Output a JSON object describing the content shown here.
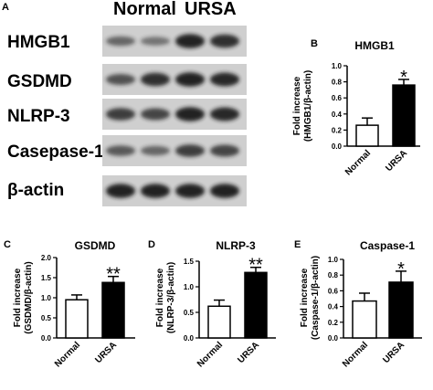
{
  "panel_a": {
    "letter": "A",
    "groups": [
      "Normal",
      "URSA"
    ],
    "blot_labels": [
      "HMGB1",
      "GSDMD",
      "NLRP-3",
      "Casepase-1",
      "β-actin"
    ],
    "band_intensity": [
      [
        0.45,
        0.35,
        0.95,
        0.85
      ],
      [
        0.6,
        0.85,
        0.95,
        0.9
      ],
      [
        0.75,
        0.7,
        0.95,
        0.9
      ],
      [
        0.55,
        0.45,
        0.75,
        0.7
      ],
      [
        0.95,
        0.95,
        0.95,
        0.95
      ]
    ],
    "blot_color": "#1a1a1a"
  },
  "chart_data": [
    {
      "letter": "B",
      "type": "bar",
      "title": "HMGB1",
      "ylabel": "Fold increase (HMGB1/β-actin)",
      "categories": [
        "Normal",
        "URSA"
      ],
      "values": [
        0.26,
        0.76
      ],
      "errors": [
        0.09,
        0.07
      ],
      "ylim": [
        0,
        1.0
      ],
      "yticks": [
        "0.0",
        "0.2",
        "0.4",
        "0.6",
        "0.8",
        "1.0"
      ],
      "significance": [
        "",
        "*"
      ],
      "bar_colors": [
        "#ffffff",
        "#000000"
      ]
    },
    {
      "letter": "C",
      "type": "bar",
      "title": "GSDMD",
      "ylabel": "Fold increase (GSDMD/β-actin)",
      "categories": [
        "Normal",
        "URSA"
      ],
      "values": [
        0.95,
        1.38
      ],
      "errors": [
        0.12,
        0.15
      ],
      "ylim": [
        0,
        2.0
      ],
      "yticks": [
        "0.0",
        "0.5",
        "1.0",
        "1.5",
        "2.0"
      ],
      "significance": [
        "",
        "**"
      ],
      "bar_colors": [
        "#ffffff",
        "#000000"
      ]
    },
    {
      "letter": "D",
      "type": "bar",
      "title": "NLRP-3",
      "ylabel": "Fold increase (NLRP-3/β-actin)",
      "categories": [
        "Normal",
        "URSA"
      ],
      "values": [
        0.62,
        1.28
      ],
      "errors": [
        0.12,
        0.1
      ],
      "ylim": [
        0,
        1.5
      ],
      "yticks": [
        "0.0",
        "0.5",
        "1.0",
        "1.5"
      ],
      "significance": [
        "",
        "**"
      ],
      "bar_colors": [
        "#ffffff",
        "#000000"
      ]
    },
    {
      "letter": "E",
      "type": "bar",
      "title": "Caspase-1",
      "ylabel": "Fold increase (Caspase-1/β-actin)",
      "categories": [
        "Normal",
        "URSA"
      ],
      "values": [
        0.47,
        0.71
      ],
      "errors": [
        0.1,
        0.14
      ],
      "ylim": [
        0,
        1.0
      ],
      "yticks": [
        "0.0",
        "0.2",
        "0.4",
        "0.6",
        "0.8",
        "1.0"
      ],
      "significance": [
        "",
        "*"
      ],
      "bar_colors": [
        "#ffffff",
        "#000000"
      ]
    }
  ]
}
